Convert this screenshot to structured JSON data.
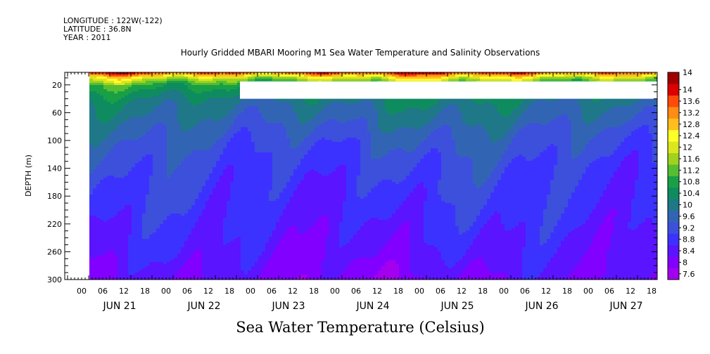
{
  "header": {
    "longitude": "LONGITUDE : 122W(-122)",
    "latitude": "LATITUDE : 36.8N",
    "year": "YEAR : 2011",
    "title": "Hourly Gridded MBARI Mooring M1 Sea Water Temperature and Salinity Observations"
  },
  "caption": "Sea Water Temperature (Celsius)",
  "chart_data": {
    "type": "heatmap",
    "title": "Hourly Gridded MBARI Mooring M1 Sea Water Temperature and Salinity Observations",
    "xlabel": "",
    "ylabel": "DEPTH (m)",
    "colorbar_label": "Sea Water Temperature (Celsius)",
    "x_hour_ticks": [
      "00",
      "06",
      "12",
      "18",
      "00",
      "06",
      "12",
      "18",
      "00",
      "06",
      "12",
      "18",
      "00",
      "06",
      "12",
      "18",
      "00",
      "06",
      "12",
      "18",
      "00",
      "06",
      "12",
      "18",
      "00",
      "06",
      "12",
      "18"
    ],
    "x_day_labels": [
      "JUN 21",
      "JUN 22",
      "JUN 23",
      "JUN 24",
      "JUN 25",
      "JUN 26",
      "JUN 27"
    ],
    "y_tick_labels": [
      "20",
      "60",
      "100",
      "140",
      "180",
      "220",
      "260",
      "300"
    ],
    "y_ticks": [
      20,
      60,
      100,
      140,
      180,
      220,
      260,
      300
    ],
    "ylim": [
      300,
      2
    ],
    "colorbar": {
      "levels": [
        7.6,
        8,
        8.4,
        8.8,
        9.2,
        9.6,
        10,
        10.4,
        10.8,
        11.2,
        11.6,
        12,
        12.4,
        12.8,
        13.2,
        13.6,
        14
      ],
      "colors": [
        "#a400f0",
        "#8200ff",
        "#5a14ff",
        "#3c32ff",
        "#3c50dc",
        "#3264b4",
        "#1e7887",
        "#0f8c5f",
        "#19a046",
        "#55be32",
        "#a0d21e",
        "#dce61e",
        "#ffff28",
        "#ffbe1e",
        "#ff8c14",
        "#ff4b0a",
        "#dc0000",
        "#a00000"
      ]
    },
    "depth_profile_c": [
      {
        "depth": 2,
        "temperature": 13.5
      },
      {
        "depth": 10,
        "temperature": 11.8
      },
      {
        "depth": 20,
        "temperature": 10.6
      },
      {
        "depth": 40,
        "temperature": 9.9
      },
      {
        "depth": 60,
        "temperature": 9.6
      },
      {
        "depth": 100,
        "temperature": 9.1
      },
      {
        "depth": 140,
        "temperature": 8.8
      },
      {
        "depth": 180,
        "temperature": 8.6
      },
      {
        "depth": 220,
        "temperature": 8.4
      },
      {
        "depth": 260,
        "temperature": 8.2
      },
      {
        "depth": 300,
        "temperature": 7.9
      }
    ],
    "missing_data": [
      {
        "start": "JUN 20 00",
        "end": "JUN 20 09",
        "depth_range": [
          2,
          300
        ]
      },
      {
        "start": "JUN 22 21",
        "end": "JUN 27 21",
        "depth_range": [
          15,
          40
        ]
      }
    ]
  }
}
